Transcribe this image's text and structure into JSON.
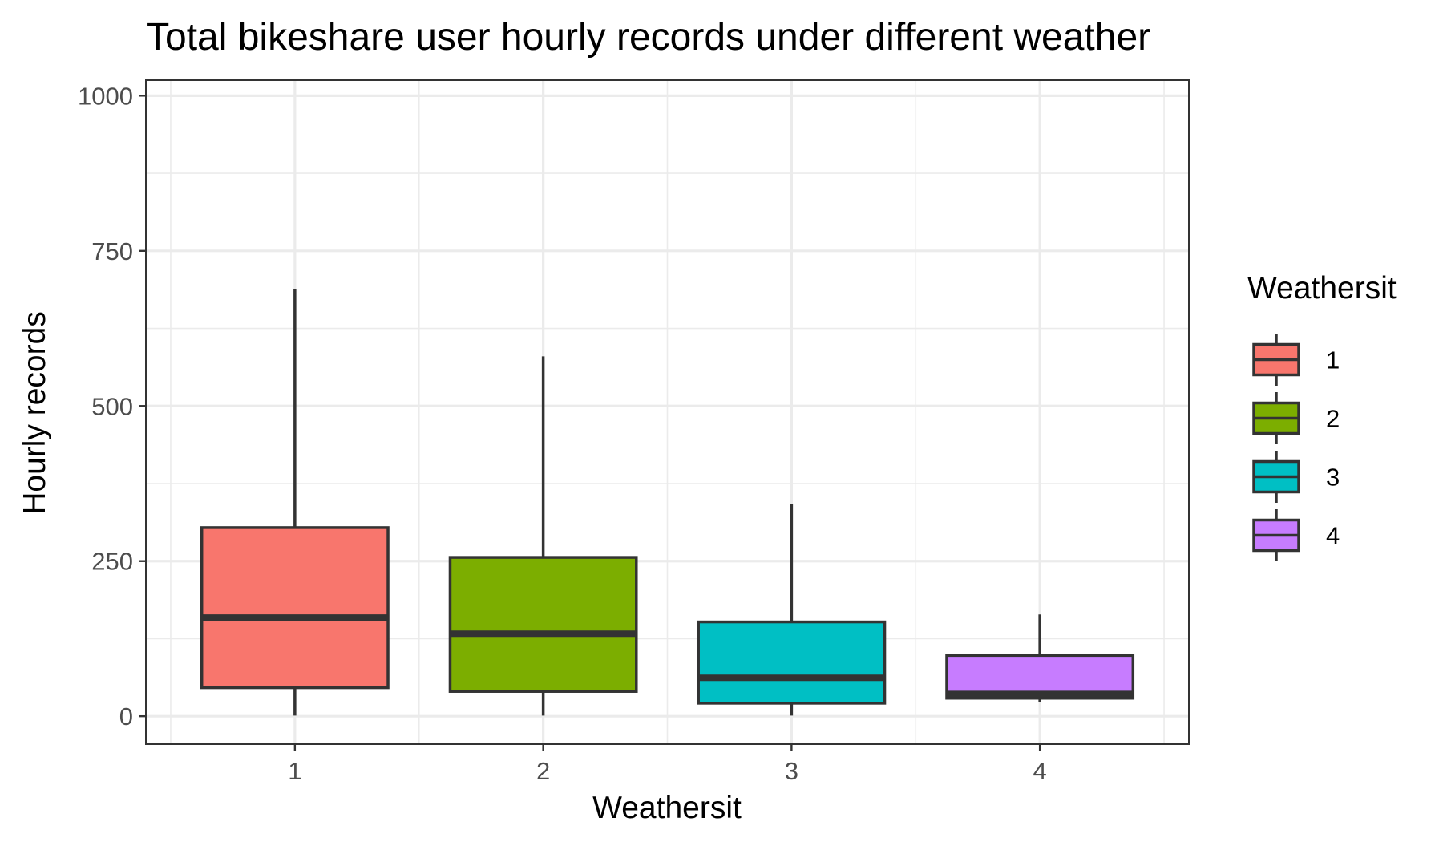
{
  "chart_data": {
    "type": "boxplot",
    "title": "Total bikeshare user hourly records under different weather",
    "xlabel": "Weathersit",
    "ylabel": "Hourly records",
    "ylim": [
      -45,
      1025
    ],
    "y_ticks": [
      0,
      250,
      500,
      750,
      1000
    ],
    "y_tick_labels": [
      "0",
      "250",
      "500",
      "750",
      "1000"
    ],
    "categories": [
      "1",
      "2",
      "3",
      "4"
    ],
    "grid": true,
    "legend": {
      "title": "Weathersit",
      "position": "right",
      "items": [
        {
          "label": "1",
          "color": "#F8766D"
        },
        {
          "label": "2",
          "color": "#7CAE00"
        },
        {
          "label": "3",
          "color": "#00BFC4"
        },
        {
          "label": "4",
          "color": "#C77CFF"
        }
      ]
    },
    "series": [
      {
        "category": "1",
        "color": "#F8766D",
        "whisker_low": 1,
        "q1": 46,
        "median": 159,
        "q3": 304,
        "whisker_high": 689
      },
      {
        "category": "2",
        "color": "#7CAE00",
        "whisker_low": 1,
        "q1": 40,
        "median": 133,
        "q3": 256,
        "whisker_high": 580
      },
      {
        "category": "3",
        "color": "#00BFC4",
        "whisker_low": 1,
        "q1": 21,
        "median": 62,
        "q3": 152,
        "whisker_high": 342
      },
      {
        "category": "4",
        "color": "#C77CFF",
        "whisker_low": 23,
        "q1": 29,
        "median": 36,
        "q3": 98,
        "whisker_high": 164
      }
    ]
  }
}
